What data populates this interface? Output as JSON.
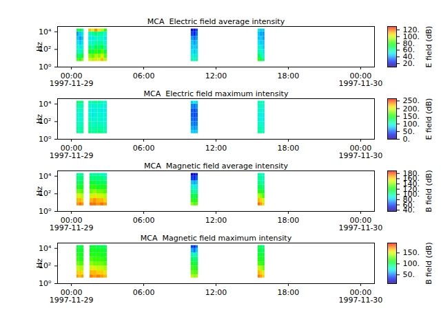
{
  "chart_data": [
    {
      "type": "heatmap",
      "title": "MCA  Electric field average intensity",
      "y_label": "Hz",
      "log": "y",
      "grid": false,
      "x_bins": [
        [
          "1997-11-29T00:27",
          "1997-11-29T00:39"
        ],
        [
          "1997-11-29T00:39",
          "1997-11-29T00:51"
        ],
        [
          "1997-11-29T00:51",
          "1997-11-29T01:02"
        ],
        [
          "1997-11-29T01:26",
          "1997-11-29T01:41"
        ],
        [
          "1997-11-29T01:41",
          "1997-11-29T01:56"
        ],
        [
          "1997-11-29T01:56",
          "1997-11-29T02:12"
        ],
        [
          "1997-11-29T02:12",
          "1997-11-29T02:27"
        ],
        [
          "1997-11-29T02:27",
          "1997-11-29T02:43"
        ],
        [
          "1997-11-29T02:43",
          "1997-11-29T02:58"
        ],
        [
          "1997-11-29T09:56",
          "1997-11-29T10:08"
        ],
        [
          "1997-11-29T10:08",
          "1997-11-29T10:20"
        ],
        [
          "1997-11-29T10:20",
          "1997-11-29T10:31"
        ],
        [
          "1997-11-29T15:29",
          "1997-11-29T15:40"
        ],
        [
          "1997-11-29T15:40",
          "1997-11-29T15:52"
        ],
        [
          "1997-11-29T15:52",
          "1997-11-29T16:03"
        ]
      ],
      "y_bins": [
        4.4,
        10,
        30,
        100,
        300,
        1000,
        3000,
        10000,
        21000
      ],
      "values": [
        [
          85,
          70,
          60,
          55,
          50,
          45,
          40,
          70
        ],
        [
          80,
          65,
          55,
          50,
          45,
          40,
          45,
          75
        ],
        [
          90,
          75,
          60,
          55,
          50,
          45,
          50,
          60
        ],
        [
          100,
          90,
          75,
          65,
          55,
          50,
          55,
          110
        ],
        [
          95,
          85,
          70,
          60,
          55,
          50,
          60,
          100
        ],
        [
          105,
          95,
          80,
          70,
          60,
          55,
          65,
          115
        ],
        [
          100,
          90,
          75,
          65,
          60,
          55,
          60,
          105
        ],
        [
          110,
          100,
          85,
          70,
          60,
          55,
          60,
          95
        ],
        [
          95,
          85,
          70,
          60,
          55,
          50,
          55,
          80
        ],
        [
          60,
          55,
          50,
          45,
          45,
          40,
          30,
          20
        ],
        [
          55,
          50,
          45,
          45,
          40,
          35,
          25,
          20
        ],
        [
          60,
          55,
          50,
          45,
          45,
          40,
          35,
          30
        ],
        [
          80,
          70,
          60,
          55,
          50,
          45,
          45,
          50
        ],
        [
          70,
          60,
          55,
          50,
          45,
          45,
          40,
          45
        ],
        [
          65,
          55,
          50,
          45,
          45,
          40,
          40,
          45
        ]
      ],
      "xlim": [
        "1997-11-28T22:51",
        "1997-11-30T01:09"
      ],
      "xticks": [
        {
          "value": "1997-11-29T00:00",
          "label": "00:00\n1997-11-29"
        },
        {
          "value": "1997-11-29T06:00",
          "label": "06:00"
        },
        {
          "value": "1997-11-29T12:00",
          "label": "12:00"
        },
        {
          "value": "1997-11-29T18:00",
          "label": "18:00"
        },
        {
          "value": "1997-11-30T00:00",
          "label": "00:00\n1997-11-30"
        }
      ],
      "ylim": [
        1,
        40000
      ],
      "yticks": [
        {
          "value": 1,
          "label": "10⁰"
        },
        {
          "value": 100,
          "label": "10²"
        },
        {
          "value": 10000,
          "label": "10⁴"
        }
      ],
      "color_label": "E field (dB)",
      "clim": [
        10,
        130
      ],
      "cticks": [
        {
          "value": 20,
          "label": "20."
        },
        {
          "value": 40,
          "label": "40."
        },
        {
          "value": 60,
          "label": "60."
        },
        {
          "value": 80,
          "label": "80."
        },
        {
          "value": 100,
          "label": "100."
        },
        {
          "value": 120,
          "label": "120."
        }
      ]
    },
    {
      "type": "heatmap",
      "title": "MCA  Electric field maximum intensity",
      "y_label": "Hz",
      "log": "y",
      "grid": false,
      "x_bins": [
        [
          "1997-11-29T00:27",
          "1997-11-29T00:39"
        ],
        [
          "1997-11-29T00:39",
          "1997-11-29T00:51"
        ],
        [
          "1997-11-29T00:51",
          "1997-11-29T01:02"
        ],
        [
          "1997-11-29T01:26",
          "1997-11-29T01:41"
        ],
        [
          "1997-11-29T01:41",
          "1997-11-29T01:56"
        ],
        [
          "1997-11-29T01:56",
          "1997-11-29T02:12"
        ],
        [
          "1997-11-29T02:12",
          "1997-11-29T02:27"
        ],
        [
          "1997-11-29T02:27",
          "1997-11-29T02:43"
        ],
        [
          "1997-11-29T02:43",
          "1997-11-29T02:58"
        ],
        [
          "1997-11-29T09:56",
          "1997-11-29T10:08"
        ],
        [
          "1997-11-29T10:08",
          "1997-11-29T10:20"
        ],
        [
          "1997-11-29T10:20",
          "1997-11-29T10:31"
        ],
        [
          "1997-11-29T15:29",
          "1997-11-29T15:40"
        ],
        [
          "1997-11-29T15:40",
          "1997-11-29T15:52"
        ],
        [
          "1997-11-29T15:52",
          "1997-11-29T16:03"
        ]
      ],
      "y_bins": [
        4.4,
        10,
        30,
        100,
        300,
        1000,
        3000,
        10000,
        21000
      ],
      "values": [
        [
          115,
          110,
          105,
          100,
          100,
          105,
          110,
          125
        ],
        [
          110,
          105,
          100,
          100,
          95,
          100,
          105,
          120
        ],
        [
          115,
          110,
          105,
          100,
          100,
          100,
          105,
          115
        ],
        [
          120,
          115,
          110,
          105,
          100,
          95,
          100,
          110
        ],
        [
          110,
          105,
          100,
          95,
          90,
          90,
          95,
          105
        ],
        [
          115,
          110,
          105,
          100,
          95,
          95,
          100,
          115
        ],
        [
          120,
          110,
          105,
          100,
          100,
          95,
          100,
          110
        ],
        [
          115,
          110,
          100,
          95,
          95,
          90,
          95,
          105
        ],
        [
          110,
          105,
          100,
          95,
          95,
          90,
          95,
          100
        ],
        [
          80,
          70,
          60,
          55,
          50,
          50,
          60,
          80
        ],
        [
          75,
          65,
          55,
          50,
          45,
          45,
          55,
          90
        ],
        [
          80,
          70,
          60,
          55,
          50,
          55,
          65,
          85
        ],
        [
          115,
          110,
          100,
          95,
          95,
          100,
          105,
          110
        ],
        [
          110,
          105,
          100,
          95,
          90,
          95,
          100,
          105
        ],
        [
          105,
          100,
          95,
          90,
          90,
          95,
          100,
          100
        ]
      ],
      "xlim": [
        "1997-11-28T22:51",
        "1997-11-30T01:09"
      ],
      "xticks": [
        {
          "value": "1997-11-29T00:00",
          "label": "00:00\n1997-11-29"
        },
        {
          "value": "1997-11-29T06:00",
          "label": "06:00"
        },
        {
          "value": "1997-11-29T12:00",
          "label": "12:00"
        },
        {
          "value": "1997-11-29T18:00",
          "label": "18:00"
        },
        {
          "value": "1997-11-30T00:00",
          "label": "00:00\n1997-11-30"
        }
      ],
      "ylim": [
        1,
        40000
      ],
      "yticks": [
        {
          "value": 1,
          "label": "10⁰"
        },
        {
          "value": 100,
          "label": "10²"
        },
        {
          "value": 10000,
          "label": "10⁴"
        }
      ],
      "color_label": "E field (dB)",
      "clim": [
        0,
        265
      ],
      "cticks": [
        {
          "value": 0,
          "label": "0."
        },
        {
          "value": 50,
          "label": "50."
        },
        {
          "value": 100,
          "label": "100."
        },
        {
          "value": 150,
          "label": "150."
        },
        {
          "value": 200,
          "label": "200."
        },
        {
          "value": 250,
          "label": "250."
        }
      ]
    },
    {
      "type": "heatmap",
      "title": "MCA  Magnetic field average intensity",
      "y_label": "Hz",
      "log": "y",
      "grid": false,
      "x_bins": [
        [
          "1997-11-29T00:27",
          "1997-11-29T00:39"
        ],
        [
          "1997-11-29T00:39",
          "1997-11-29T00:51"
        ],
        [
          "1997-11-29T00:51",
          "1997-11-29T01:02"
        ],
        [
          "1997-11-29T01:32",
          "1997-11-29T01:49"
        ],
        [
          "1997-11-29T01:49",
          "1997-11-29T02:06"
        ],
        [
          "1997-11-29T02:06",
          "1997-11-29T02:24"
        ],
        [
          "1997-11-29T02:24",
          "1997-11-29T02:41"
        ],
        [
          "1997-11-29T02:41",
          "1997-11-29T02:58"
        ],
        [
          "1997-11-29T09:56",
          "1997-11-29T10:08"
        ],
        [
          "1997-11-29T10:08",
          "1997-11-29T10:20"
        ],
        [
          "1997-11-29T10:20",
          "1997-11-29T10:31"
        ],
        [
          "1997-11-29T15:29",
          "1997-11-29T15:40"
        ],
        [
          "1997-11-29T15:40",
          "1997-11-29T15:52"
        ],
        [
          "1997-11-29T15:52",
          "1997-11-29T16:03"
        ]
      ],
      "y_bins": [
        4.4,
        10,
        30,
        100,
        300,
        1000,
        3000,
        10000,
        21000
      ],
      "values": [
        [
          170,
          165,
          150,
          135,
          120,
          110,
          105,
          100
        ],
        [
          175,
          165,
          150,
          135,
          120,
          110,
          105,
          100
        ],
        [
          170,
          160,
          145,
          130,
          120,
          110,
          105,
          100
        ],
        [
          175,
          165,
          150,
          135,
          125,
          115,
          105,
          100
        ],
        [
          175,
          170,
          155,
          140,
          125,
          115,
          105,
          100
        ],
        [
          170,
          165,
          150,
          135,
          120,
          110,
          105,
          100
        ],
        [
          175,
          165,
          150,
          135,
          120,
          110,
          105,
          95
        ],
        [
          170,
          160,
          145,
          130,
          120,
          110,
          100,
          95
        ],
        [
          140,
          125,
          115,
          105,
          95,
          80,
          60,
          45
        ],
        [
          130,
          120,
          110,
          100,
          90,
          75,
          55,
          45
        ],
        [
          135,
          125,
          115,
          100,
          90,
          80,
          65,
          55
        ],
        [
          175,
          165,
          145,
          125,
          110,
          105,
          100,
          100
        ],
        [
          170,
          160,
          140,
          120,
          110,
          100,
          100,
          95
        ],
        [
          160,
          150,
          130,
          115,
          105,
          100,
          95,
          95
        ]
      ],
      "xlim": [
        "1997-11-28T22:51",
        "1997-11-30T01:09"
      ],
      "xticks": [
        {
          "value": "1997-11-29T00:00",
          "label": "00:00\n1997-11-29"
        },
        {
          "value": "1997-11-29T06:00",
          "label": "06:00"
        },
        {
          "value": "1997-11-29T12:00",
          "label": "12:00"
        },
        {
          "value": "1997-11-29T18:00",
          "label": "18:00"
        },
        {
          "value": "1997-11-30T00:00",
          "label": "00:00\n1997-11-30"
        }
      ],
      "ylim": [
        1,
        40000
      ],
      "yticks": [
        {
          "value": 1,
          "label": "10⁰"
        },
        {
          "value": 100,
          "label": "10²"
        },
        {
          "value": 10000,
          "label": "10⁴"
        }
      ],
      "color_label": "B field (dB)",
      "clim": [
        35,
        190
      ],
      "cticks": [
        {
          "value": 40,
          "label": "40."
        },
        {
          "value": 60,
          "label": "60."
        },
        {
          "value": 80,
          "label": "80."
        },
        {
          "value": 100,
          "label": "100."
        },
        {
          "value": 120,
          "label": "120."
        },
        {
          "value": 140,
          "label": "140."
        },
        {
          "value": 160,
          "label": "160."
        },
        {
          "value": 180,
          "label": "180."
        }
      ]
    },
    {
      "type": "heatmap",
      "title": "MCA  Magnetic field maximum intensity",
      "y_label": "Hz",
      "log": "y",
      "grid": false,
      "x_bins": [
        [
          "1997-11-29T00:27",
          "1997-11-29T00:39"
        ],
        [
          "1997-11-29T00:39",
          "1997-11-29T00:51"
        ],
        [
          "1997-11-29T00:51",
          "1997-11-29T01:02"
        ],
        [
          "1997-11-29T01:32",
          "1997-11-29T01:49"
        ],
        [
          "1997-11-29T01:49",
          "1997-11-29T02:06"
        ],
        [
          "1997-11-29T02:06",
          "1997-11-29T02:24"
        ],
        [
          "1997-11-29T02:24",
          "1997-11-29T02:41"
        ],
        [
          "1997-11-29T02:41",
          "1997-11-29T02:58"
        ],
        [
          "1997-11-29T09:56",
          "1997-11-29T10:08"
        ],
        [
          "1997-11-29T10:08",
          "1997-11-29T10:20"
        ],
        [
          "1997-11-29T10:20",
          "1997-11-29T10:31"
        ],
        [
          "1997-11-29T15:29",
          "1997-11-29T15:40"
        ],
        [
          "1997-11-29T15:40",
          "1997-11-29T15:52"
        ],
        [
          "1997-11-29T15:52",
          "1997-11-29T16:03"
        ]
      ],
      "y_bins": [
        4.4,
        10,
        30,
        100,
        300,
        1000,
        3000,
        10000,
        21000
      ],
      "values": [
        [
          170,
          160,
          145,
          130,
          120,
          115,
          110,
          105
        ],
        [
          165,
          160,
          140,
          125,
          115,
          110,
          110,
          100
        ],
        [
          170,
          155,
          140,
          125,
          115,
          110,
          105,
          105
        ],
        [
          175,
          165,
          150,
          135,
          125,
          115,
          110,
          105
        ],
        [
          170,
          165,
          150,
          130,
          120,
          115,
          110,
          105
        ],
        [
          175,
          160,
          145,
          130,
          120,
          115,
          110,
          100
        ],
        [
          170,
          160,
          145,
          130,
          120,
          110,
          110,
          100
        ],
        [
          165,
          155,
          140,
          125,
          115,
          110,
          105,
          100
        ],
        [
          145,
          130,
          120,
          110,
          100,
          85,
          60,
          40
        ],
        [
          135,
          125,
          115,
          105,
          95,
          80,
          50,
          35
        ],
        [
          140,
          125,
          115,
          105,
          95,
          85,
          65,
          50
        ],
        [
          175,
          165,
          145,
          125,
          115,
          110,
          105,
          100
        ],
        [
          170,
          160,
          140,
          120,
          110,
          105,
          100,
          100
        ],
        [
          160,
          150,
          130,
          115,
          110,
          105,
          100,
          95
        ]
      ],
      "xlim": [
        "1997-11-28T22:51",
        "1997-11-30T01:09"
      ],
      "xticks": [
        {
          "value": "1997-11-29T00:00",
          "label": "00:00\n1997-11-29"
        },
        {
          "value": "1997-11-29T06:00",
          "label": "06:00"
        },
        {
          "value": "1997-11-29T12:00",
          "label": "12:00"
        },
        {
          "value": "1997-11-29T18:00",
          "label": "18:00"
        },
        {
          "value": "1997-11-30T00:00",
          "label": "00:00\n1997-11-30"
        }
      ],
      "ylim": [
        1,
        40000
      ],
      "yticks": [
        {
          "value": 1,
          "label": "10⁰"
        },
        {
          "value": 100,
          "label": "10²"
        },
        {
          "value": 10000,
          "label": "10⁴"
        }
      ],
      "color_label": "B field (dB)",
      "clim": [
        10,
        195
      ],
      "cticks": [
        {
          "value": 50,
          "label": "50."
        },
        {
          "value": 100,
          "label": "100."
        },
        {
          "value": 150,
          "label": "150."
        }
      ]
    }
  ]
}
